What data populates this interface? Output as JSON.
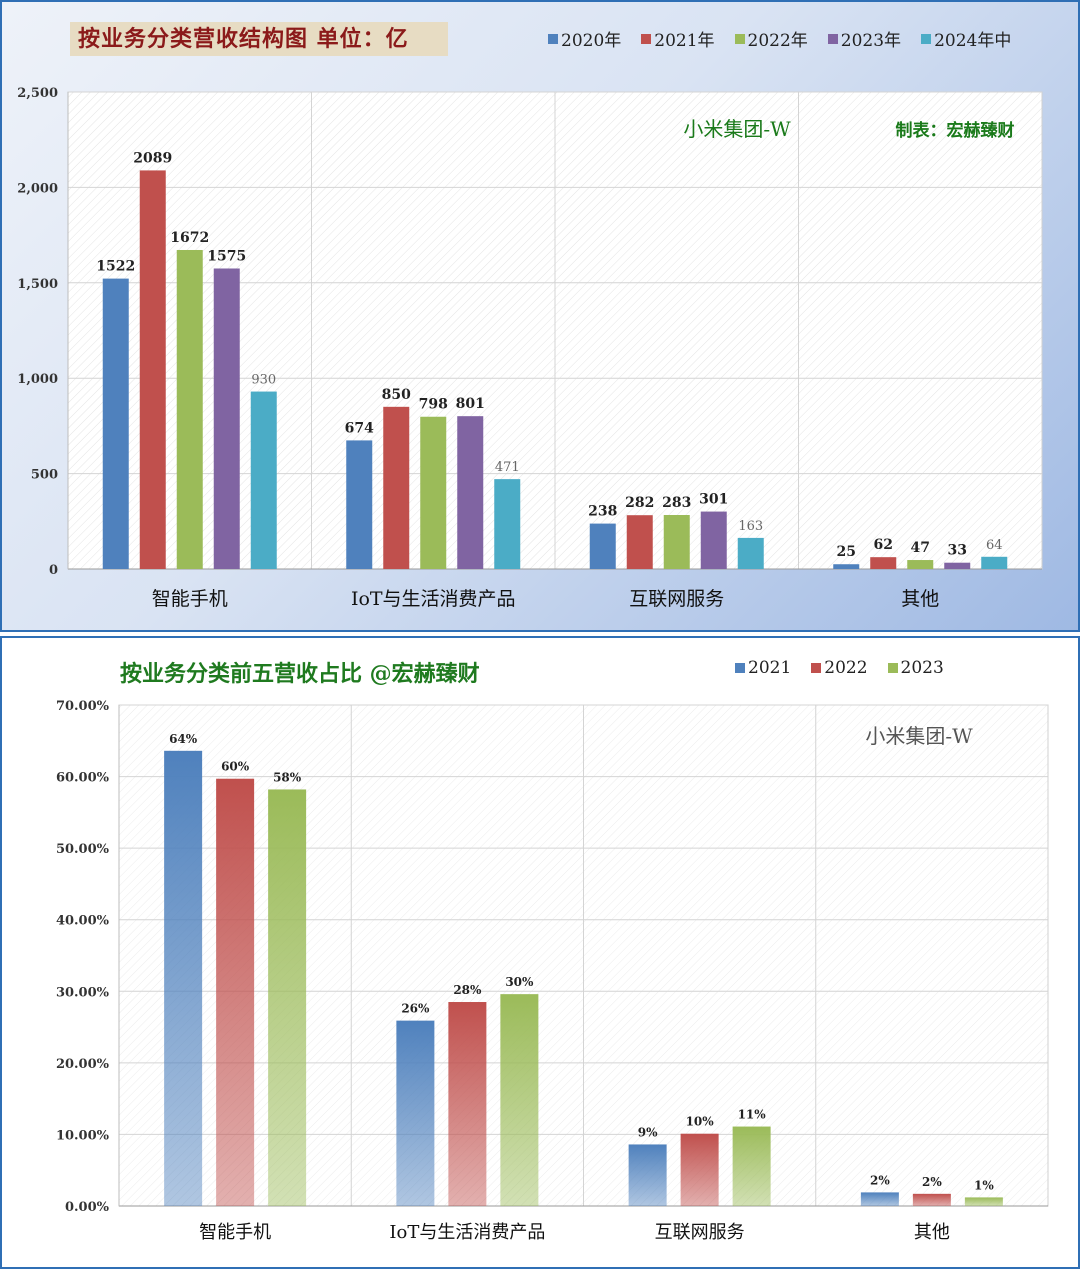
{
  "charts": [
    {
      "title": "按业务分类营收结构图 单位：亿",
      "watermark": "小米集团-W",
      "credit": "制表：宏赫臻财",
      "legend": [
        "2020年",
        "2021年",
        "2022年",
        "2023年",
        "2024年中"
      ]
    },
    {
      "title": "按业务分类前五营收占比  @宏赫臻财",
      "watermark": "小米集团-W",
      "legend": [
        "2021",
        "2022",
        "2023"
      ]
    }
  ],
  "chart_data": [
    {
      "type": "bar",
      "title": "按业务分类营收结构图 单位：亿",
      "categories": [
        "智能手机",
        "IoT与生活消费产品",
        "互联网服务",
        "其他"
      ],
      "series": [
        {
          "name": "2020年",
          "values": [
            1522,
            674,
            238,
            25
          ],
          "color": "#4f81bd"
        },
        {
          "name": "2021年",
          "values": [
            2089,
            850,
            282,
            62
          ],
          "color": "#c0504d"
        },
        {
          "name": "2022年",
          "values": [
            1672,
            798,
            283,
            47
          ],
          "color": "#9bbb59"
        },
        {
          "name": "2023年",
          "values": [
            1575,
            801,
            301,
            33
          ],
          "color": "#8064a2"
        },
        {
          "name": "2024年中",
          "values": [
            930,
            471,
            163,
            64
          ],
          "color": "#4bacc6"
        }
      ],
      "data_labels": [
        [
          "1522",
          "674",
          "238",
          "25"
        ],
        [
          "2089",
          "850",
          "282",
          "62"
        ],
        [
          "1672",
          "798",
          "283",
          "47"
        ],
        [
          "1575",
          "801",
          "301",
          "33"
        ],
        [
          "930",
          "471",
          "163",
          "64"
        ]
      ],
      "ylim": [
        0,
        2500
      ],
      "yticks": [
        "0",
        "500",
        "1,000",
        "1,500",
        "2,000",
        "2,500"
      ],
      "ytick_values": [
        0,
        500,
        1000,
        1500,
        2000,
        2500
      ],
      "grid": true
    },
    {
      "type": "bar",
      "title": "按业务分类前五营收占比  @宏赫臻财",
      "categories": [
        "智能手机",
        "IoT与生活消费产品",
        "互联网服务",
        "其他"
      ],
      "series": [
        {
          "name": "2021",
          "values": [
            63.6,
            25.9,
            8.6,
            1.9
          ],
          "color": "#4f81bd"
        },
        {
          "name": "2022",
          "values": [
            59.7,
            28.5,
            10.1,
            1.7
          ],
          "color": "#c0504d"
        },
        {
          "name": "2023",
          "values": [
            58.2,
            29.6,
            11.1,
            1.2
          ],
          "color": "#9bbb59"
        }
      ],
      "data_labels": [
        [
          "64%",
          "26%",
          "9%",
          "2%"
        ],
        [
          "60%",
          "28%",
          "10%",
          "2%"
        ],
        [
          "58%",
          "30%",
          "11%",
          "1%"
        ]
      ],
      "ylim": [
        0,
        70
      ],
      "yticks": [
        "0.00%",
        "10.00%",
        "20.00%",
        "30.00%",
        "40.00%",
        "50.00%",
        "60.00%",
        "70.00%"
      ],
      "ytick_values": [
        0,
        10,
        20,
        30,
        40,
        50,
        60,
        70
      ],
      "grid": true
    }
  ]
}
